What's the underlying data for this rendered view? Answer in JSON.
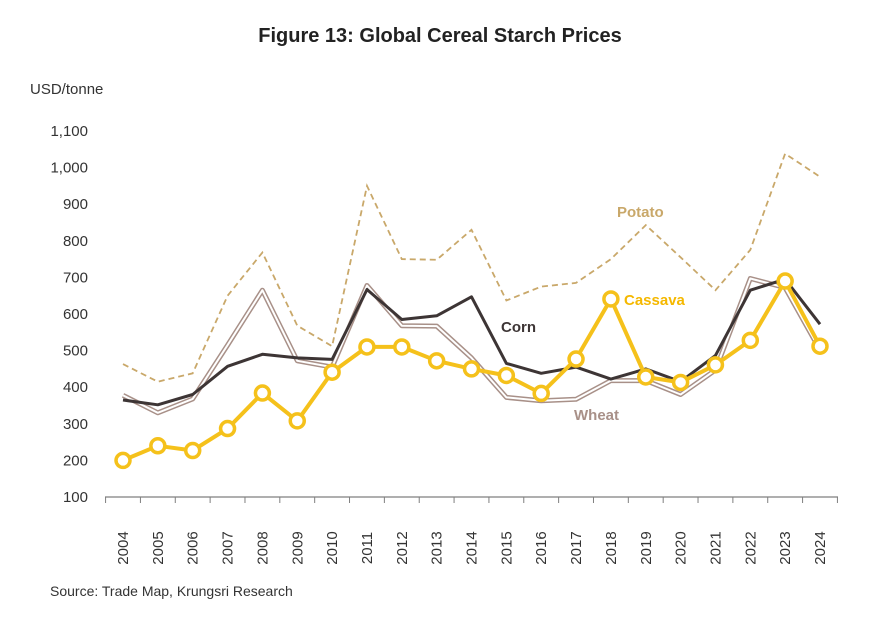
{
  "title": "Figure 13: Global Cereal Starch Prices",
  "unit_label": "USD/tonne",
  "source": "Source: Trade Map, Krungsri Research",
  "chart_data": {
    "type": "line",
    "title": "Figure 13: Global Cereal Starch Prices",
    "ylabel": "USD/tonne",
    "xlabel": "",
    "ylim": [
      100,
      1100
    ],
    "yticks": [
      "100",
      "200",
      "300",
      "400",
      "500",
      "600",
      "700",
      "800",
      "900",
      "1,000",
      "1,100"
    ],
    "x": [
      "2004",
      "2005",
      "2006",
      "2007",
      "2008",
      "2009",
      "2010",
      "2011",
      "2012",
      "2013",
      "2014",
      "2015",
      "2016",
      "2017",
      "2018",
      "2019",
      "2020",
      "2021",
      "2022",
      "2023",
      "2024"
    ],
    "grid": false,
    "series": [
      {
        "name": "Potato",
        "color": "#c9a86a",
        "style": "dashed",
        "values": [
          463,
          415,
          438,
          650,
          768,
          568,
          512,
          950,
          750,
          748,
          830,
          637,
          675,
          685,
          750,
          843,
          755,
          665,
          775,
          1038,
          975
        ]
      },
      {
        "name": "Wheat",
        "color": "#a89088",
        "style": "double",
        "values": [
          378,
          330,
          368,
          515,
          665,
          472,
          455,
          678,
          568,
          567,
          480,
          372,
          363,
          367,
          418,
          418,
          380,
          447,
          697,
          672,
          502
        ]
      },
      {
        "name": "Corn",
        "color": "#3d3535",
        "style": "solid",
        "values": [
          365,
          352,
          380,
          457,
          490,
          480,
          476,
          667,
          585,
          595,
          647,
          465,
          438,
          455,
          422,
          450,
          415,
          487,
          665,
          695,
          572
        ]
      },
      {
        "name": "Cassava",
        "color": "#f5c11b",
        "style": "markers",
        "values": [
          200,
          240,
          227,
          287,
          384,
          308,
          441,
          510,
          510,
          472,
          450,
          432,
          383,
          477,
          641,
          428,
          413,
          461,
          528,
          690,
          512
        ]
      }
    ]
  }
}
